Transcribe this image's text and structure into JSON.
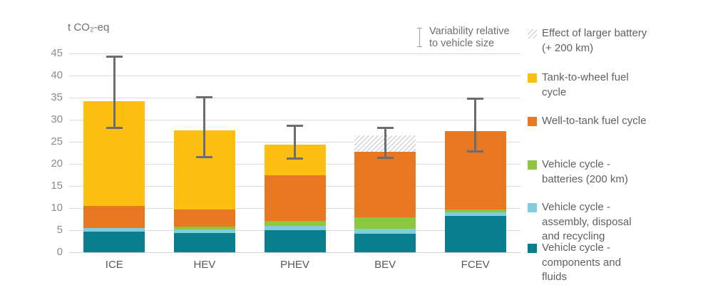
{
  "chart": {
    "unit_label": "t CO₂-eq",
    "annotation": {
      "line1": "Variability relative",
      "line2": "to vehicle size"
    },
    "y_ticks": [
      45,
      40,
      35,
      30,
      25,
      20,
      15,
      10,
      5,
      0
    ]
  },
  "chart_data": {
    "type": "bar",
    "stacked": true,
    "title": "t CO₂-eq",
    "xlabel": "",
    "ylabel": "t CO₂-eq",
    "ylim": [
      0,
      45
    ],
    "grid": true,
    "legend_position": "right",
    "categories": [
      "ICE",
      "HEV",
      "PHEV",
      "BEV",
      "FCEV"
    ],
    "series": [
      {
        "name": "Vehicle cycle - components and fluids",
        "color": "#087e8e",
        "values": [
          4.6,
          4.4,
          5.0,
          4.2,
          8.2
        ]
      },
      {
        "name": "Vehicle cycle - assembly, disposal and recycling",
        "color": "#7fcdde",
        "values": [
          0.9,
          0.8,
          1.0,
          1.1,
          0.8
        ]
      },
      {
        "name": "Vehicle cycle - batteries (200 km)",
        "color": "#8fc63f",
        "values": [
          0,
          0.6,
          1.1,
          2.6,
          0.6
        ]
      },
      {
        "name": "Well-to-tank fuel cycle",
        "color": "#e87722",
        "values": [
          5.0,
          3.9,
          10.3,
          14.8,
          17.8
        ]
      },
      {
        "name": "Tank-to-wheel fuel cycle",
        "color": "#fdc010",
        "values": [
          23.7,
          17.9,
          7.0,
          0,
          0
        ]
      },
      {
        "name": "Effect of larger battery (+ 200 km)",
        "pattern": "hatch",
        "values": [
          0,
          0,
          0,
          3.8,
          0
        ]
      }
    ],
    "totals": [
      34.2,
      27.6,
      24.4,
      26.5,
      27.4
    ],
    "error_bars": [
      {
        "low": 28.0,
        "high": 44.3
      },
      {
        "low": 21.4,
        "high": 35.2
      },
      {
        "low": 21.1,
        "high": 28.7
      },
      {
        "low": 21.3,
        "high": 28.2
      },
      {
        "low": 22.8,
        "high": 34.9
      }
    ]
  },
  "legend": {
    "items": [
      {
        "label": "Effect of larger battery (+ 200 km)",
        "pattern": "hatch"
      },
      {
        "label": "Tank-to-wheel fuel cycle",
        "color": "#fdc010"
      },
      {
        "label": "Well-to-tank fuel cycle",
        "color": "#e87722"
      },
      {
        "label": "Vehicle cycle - batteries (200 km)",
        "color": "#8fc63f"
      },
      {
        "label": "Vehicle cycle - assembly, disposal and recycling",
        "color": "#7fcdde"
      },
      {
        "label": "Vehicle cycle - components and fluids",
        "color": "#087e8e"
      }
    ]
  }
}
